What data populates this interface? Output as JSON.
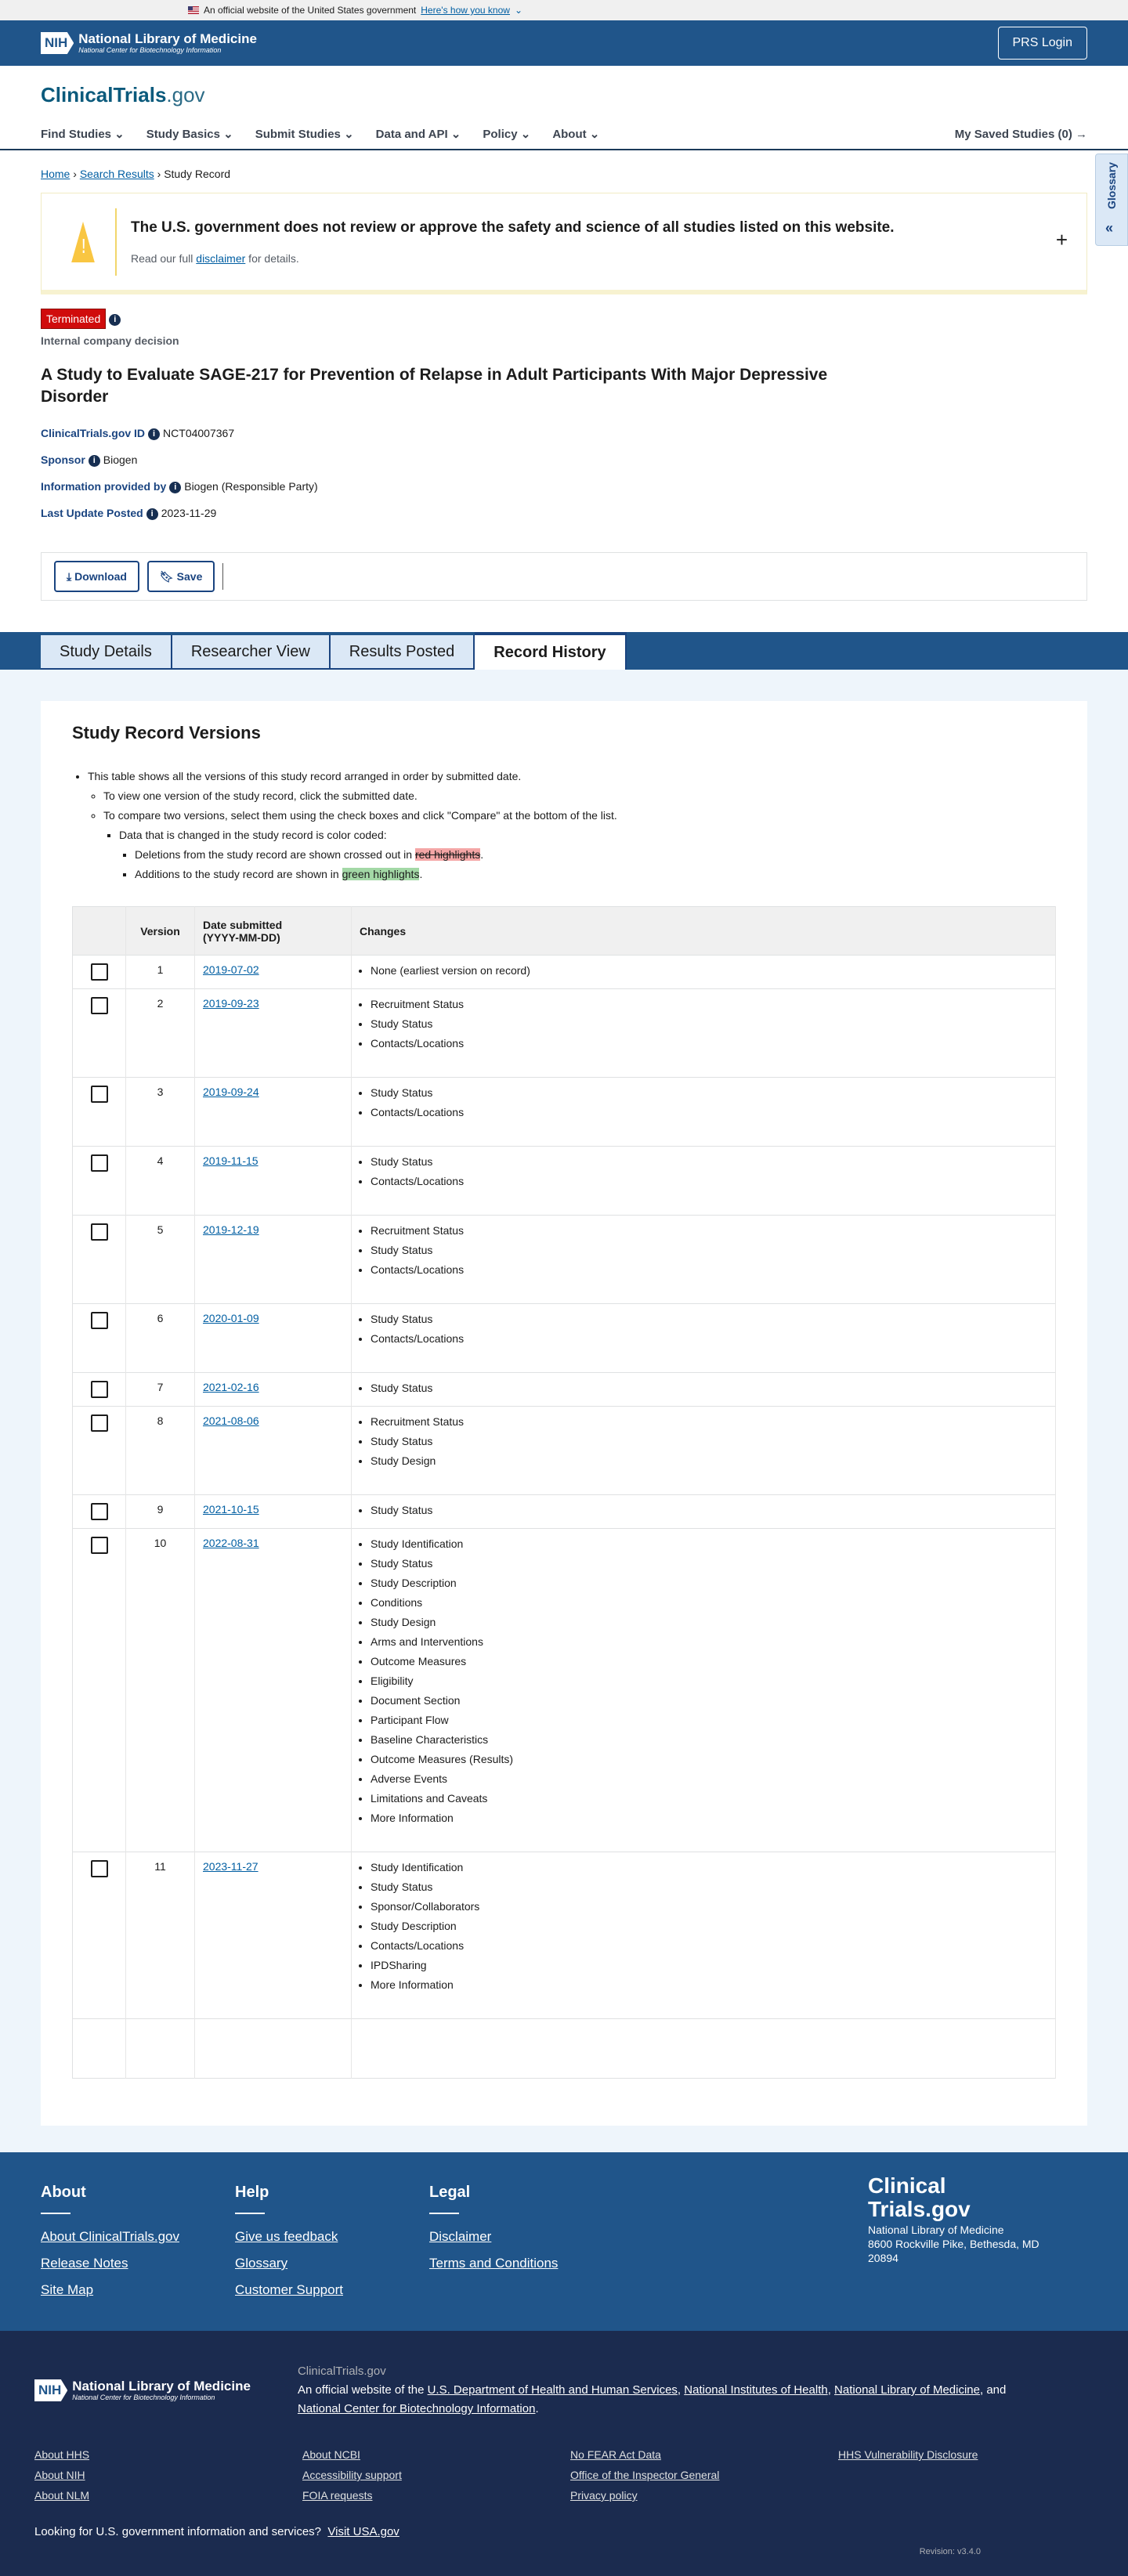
{
  "gov_banner": {
    "text": "An official website of the United States government",
    "link": "Here's how you know"
  },
  "header": {
    "org": "National Library of Medicine",
    "suborg": "National Center for Biotechnology Information",
    "login": "PRS Login"
  },
  "site": {
    "name": "ClinicalTrials",
    "tld": ".gov"
  },
  "nav": {
    "items": [
      "Find Studies",
      "Study Basics",
      "Submit Studies",
      "Data and API",
      "Policy",
      "About"
    ],
    "saved": "My Saved Studies (0)"
  },
  "breadcrumb": {
    "home": "Home",
    "search": "Search Results",
    "current": "Study Record"
  },
  "glossary": "Glossary",
  "disclaimer": {
    "heading": "The U.S. government does not review or approve the safety and science of all studies listed on this website.",
    "pre": "Read our full ",
    "link": "disclaimer",
    "post": " for details."
  },
  "study": {
    "status": "Terminated",
    "status_reason": "Internal company decision",
    "title": "A Study to Evaluate SAGE-217 for Prevention of Relapse in Adult Participants With Major Depressive Disorder",
    "meta": [
      {
        "label": "ClinicalTrials.gov ID",
        "value": "NCT04007367"
      },
      {
        "label": "Sponsor",
        "value": "Biogen"
      },
      {
        "label": "Information provided by",
        "value": "Biogen (Responsible Party)"
      },
      {
        "label": "Last Update Posted",
        "value": "2023-11-29"
      }
    ]
  },
  "actions": {
    "download": "Download",
    "save": "Save"
  },
  "tabs": [
    "Study Details",
    "Researcher View",
    "Results Posted",
    "Record History"
  ],
  "versions": {
    "heading": "Study Record Versions",
    "note1": "This table shows all the versions of this study record arranged in order by submitted date.",
    "note2": "To view one version of the study record, click the submitted date.",
    "note3": "To compare two versions, select them using the check boxes and click \"Compare\" at the bottom of the list.",
    "note4": "Data that is changed in the study record is color coded:",
    "note5_pre": "Deletions from the study record are shown crossed out in ",
    "note5_hl": "red highlights",
    "note5_post": ".",
    "note6_pre": "Additions to the study record are shown in ",
    "note6_hl": "green highlights",
    "note6_post": ".",
    "columns": [
      "Version",
      "Date submitted",
      "(YYYY-MM-DD)",
      "Changes"
    ],
    "rows": [
      {
        "version": "1",
        "date": "2019-07-02",
        "changes": [
          "None (earliest version on record)"
        ]
      },
      {
        "version": "2",
        "date": "2019-09-23",
        "changes": [
          "Recruitment Status",
          "Study Status",
          "Contacts/Locations"
        ]
      },
      {
        "version": "3",
        "date": "2019-09-24",
        "changes": [
          "Study Status",
          "Contacts/Locations"
        ]
      },
      {
        "version": "4",
        "date": "2019-11-15",
        "changes": [
          "Study Status",
          "Contacts/Locations"
        ]
      },
      {
        "version": "5",
        "date": "2019-12-19",
        "changes": [
          "Recruitment Status",
          "Study Status",
          "Contacts/Locations"
        ]
      },
      {
        "version": "6",
        "date": "2020-01-09",
        "changes": [
          "Study Status",
          "Contacts/Locations"
        ]
      },
      {
        "version": "7",
        "date": "2021-02-16",
        "changes": [
          "Study Status"
        ]
      },
      {
        "version": "8",
        "date": "2021-08-06",
        "changes": [
          "Recruitment Status",
          "Study Status",
          "Study Design"
        ]
      },
      {
        "version": "9",
        "date": "2021-10-15",
        "changes": [
          "Study Status"
        ]
      },
      {
        "version": "10",
        "date": "2022-08-31",
        "changes": [
          "Study Identification",
          "Study Status",
          "Study Description",
          "Conditions",
          "Study Design",
          "Arms and Interventions",
          "Outcome Measures",
          "Eligibility",
          "Document Section",
          "Participant Flow",
          "Baseline Characteristics",
          "Outcome Measures (Results)",
          "Adverse Events",
          "Limitations and Caveats",
          "More Information"
        ]
      },
      {
        "version": "11",
        "date": "2023-11-27",
        "changes": [
          "Study Identification",
          "Study Status",
          "Sponsor/Collaborators",
          "Study Description",
          "Contacts/Locations",
          "IPDSharing",
          "More Information"
        ]
      }
    ]
  },
  "footer": {
    "columns": [
      {
        "title": "About",
        "links": [
          "About ClinicalTrials.gov",
          "Release Notes",
          "Site Map"
        ]
      },
      {
        "title": "Help",
        "links": [
          "Give us feedback",
          "Glossary",
          "Customer Support"
        ]
      },
      {
        "title": "Legal",
        "links": [
          "Disclaimer",
          "Terms and Conditions"
        ]
      }
    ],
    "brand": {
      "line1": "Clinical",
      "line2": "Trials.gov",
      "org": "National Library of Medicine",
      "address1": "8600 Rockville Pike, Bethesda, MD",
      "address2": "20894"
    },
    "site": "ClinicalTrials.gov",
    "official_pre": "An official website of the ",
    "official_links": [
      "U.S. Department of Health and Human Services",
      "National Institutes of Health",
      "National Library of Medicine",
      "National Center for Biotechnology Information"
    ],
    "links": [
      "About HHS",
      "About NCBI",
      "No FEAR Act Data",
      "HHS Vulnerability Disclosure",
      "About NIH",
      "Accessibility support",
      "Office of the Inspector General",
      "",
      "About NLM",
      "FOIA requests",
      "Privacy policy",
      ""
    ],
    "usa_text": "Looking for U.S. government information and services?",
    "usa_link": "Visit USA.gov",
    "revision": "Revision: v3.4.0"
  }
}
